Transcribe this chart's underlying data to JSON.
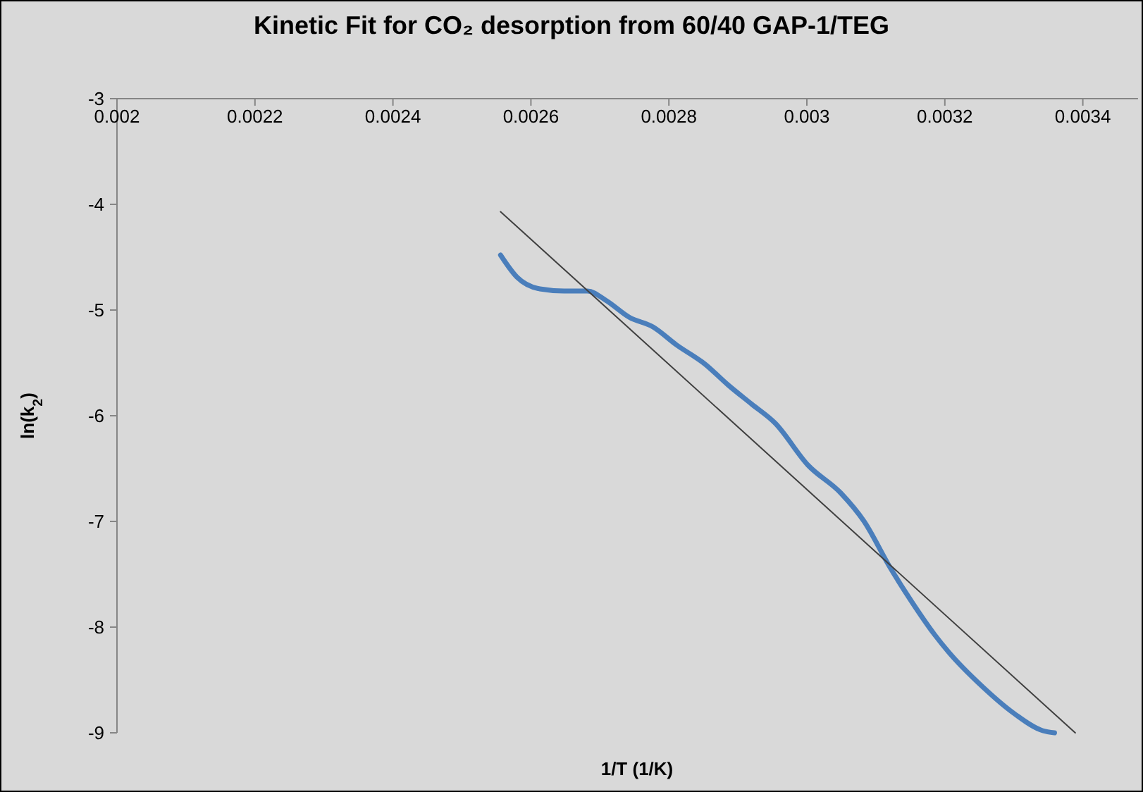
{
  "chart_data": {
    "type": "line",
    "title": "Kinetic Fit for CO₂ desorption from 60/40 GAP-1/TEG",
    "xlabel": "1/T (1/K)",
    "ylabel": "ln(k$_{2}$)",
    "xlim": [
      0.002,
      0.00348
    ],
    "xticks": [
      0.002,
      0.0022,
      0.0024,
      0.0026,
      0.0028,
      0.003,
      0.0032,
      0.0034
    ],
    "ylim": [
      -9,
      -3
    ],
    "yticks": [
      -9,
      -8,
      -7,
      -6,
      -5,
      -4,
      -3
    ],
    "series": [
      {
        "color": "#4a7ebb",
        "x": [
          0.002556,
          0.00258,
          0.002613,
          0.002648,
          0.002682,
          0.002709,
          0.002743,
          0.002777,
          0.002811,
          0.002852,
          0.002886,
          0.00292,
          0.002954,
          0.003002,
          0.003049,
          0.003083,
          0.003121,
          0.003152,
          0.003185,
          0.003206,
          0.003254,
          0.003301,
          0.003342,
          0.003359
        ],
        "values": [
          -4.48,
          -4.69,
          -4.8,
          -4.82,
          -4.82,
          -4.91,
          -5.07,
          -5.16,
          -5.33,
          -5.51,
          -5.71,
          -5.89,
          -6.07,
          -6.47,
          -6.73,
          -7.0,
          -7.44,
          -7.76,
          -8.07,
          -8.24,
          -8.56,
          -8.82,
          -8.98,
          -9.0
        ]
      },
      {
        "type": "line",
        "color": "#404040",
        "x": [
          0.002556,
          0.003389
        ],
        "values": [
          -4.07,
          -9.0
        ]
      }
    ]
  }
}
